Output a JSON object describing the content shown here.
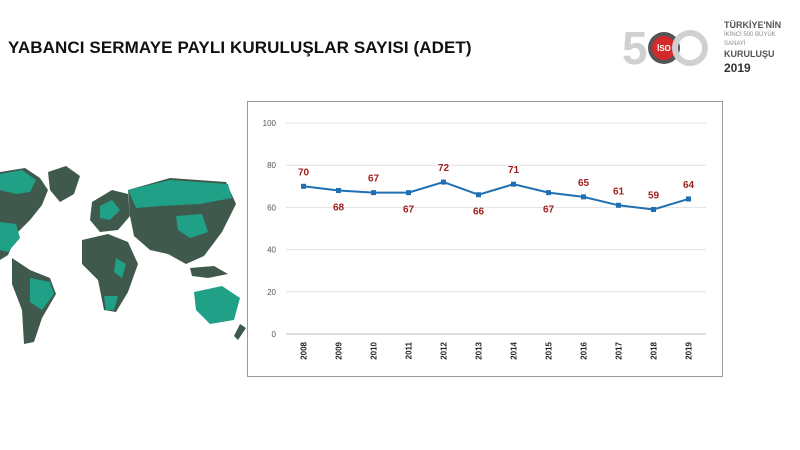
{
  "page": {
    "title": "YABANCI SERMAYE PAYLI KURULUŞLAR SAYISI (ADET)"
  },
  "logo": {
    "line1": "TÜRKİYE'NİN",
    "line2": "İKİNCİ 500 BÜYÜK SANAYİ",
    "line3": "KURULUŞU",
    "year": "2019",
    "badge": "İSO"
  },
  "colors": {
    "line": "#1f6fb2",
    "data_label": "#a02020",
    "map_land": "#3f5a4d",
    "map_highlight": "#20a086"
  },
  "chart_data": {
    "type": "line",
    "title": "",
    "xlabel": "",
    "ylabel": "",
    "categories": [
      "2008",
      "2009",
      "2010",
      "2011",
      "2012",
      "2013",
      "2014",
      "2015",
      "2016",
      "2017",
      "2018",
      "2019"
    ],
    "values": [
      70,
      68,
      67,
      67,
      72,
      66,
      71,
      67,
      65,
      61,
      59,
      64
    ],
    "label_position": [
      "above",
      "below",
      "above",
      "below",
      "above",
      "below",
      "above",
      "below",
      "above",
      "above",
      "above",
      "above"
    ],
    "ylim": [
      0,
      100
    ],
    "yticks": [
      0,
      20,
      40,
      60,
      80,
      100
    ],
    "grid": true,
    "legend": "none"
  }
}
